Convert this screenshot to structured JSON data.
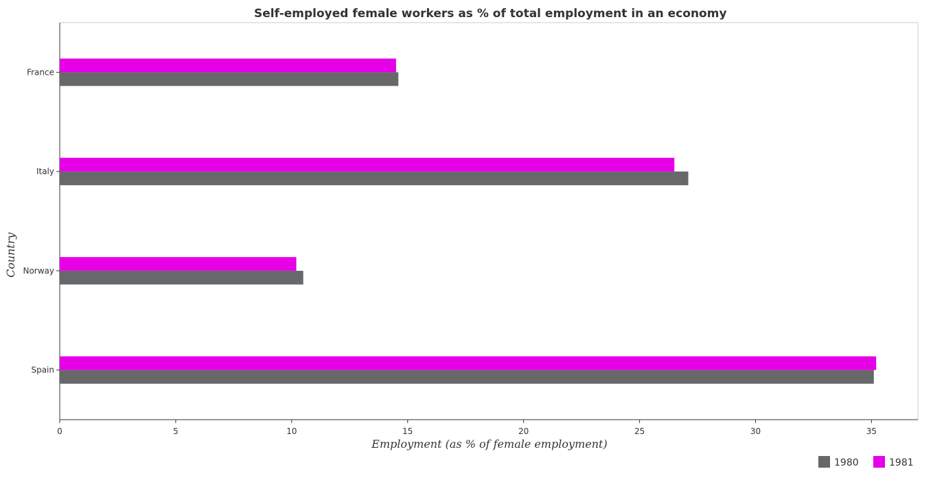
{
  "chart_data": {
    "type": "bar",
    "orientation": "horizontal",
    "title": "Self-employed female workers as % of total employment in an economy",
    "xlabel": "Employment (as % of female employment)",
    "ylabel": "Country",
    "categories": [
      "France",
      "Italy",
      "Norway",
      "Spain"
    ],
    "series": [
      {
        "name": "1980",
        "color": "#66686a",
        "values": [
          14.6,
          27.1,
          10.5,
          35.1
        ]
      },
      {
        "name": "1981",
        "color": "#e600e6",
        "values": [
          14.5,
          26.5,
          10.2,
          35.2
        ]
      }
    ],
    "xlim": [
      0,
      37
    ],
    "xticks": [
      0,
      5,
      10,
      15,
      20,
      25,
      30,
      35
    ],
    "grid": false,
    "legend_position": "bottom-right"
  }
}
